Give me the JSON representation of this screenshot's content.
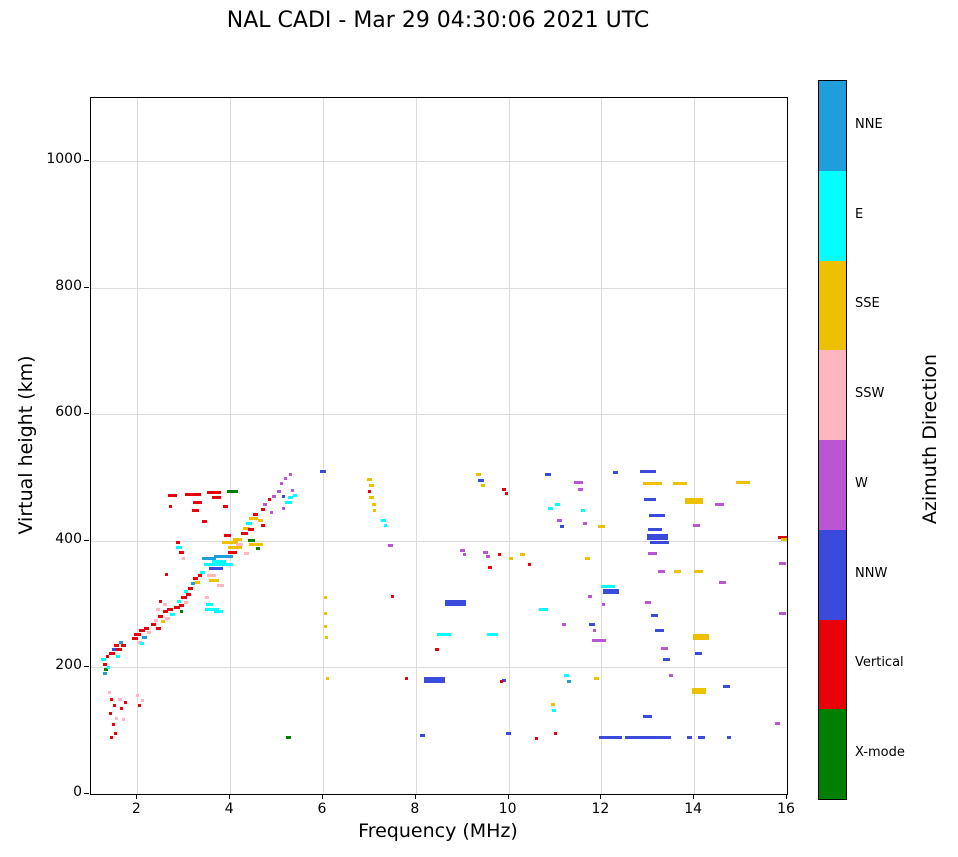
{
  "chart_data": {
    "type": "scatter",
    "title": "NAL CADI - Mar 29 04:30:06 2021 UTC",
    "xlabel": "Frequency (MHz)",
    "ylabel": "Virtual height (km)",
    "legend_title": "Azimuth Direction",
    "legend_position": "right-colorbar",
    "xlim": [
      1,
      16
    ],
    "ylim": [
      0,
      1100
    ],
    "x_ticks": [
      2,
      4,
      6,
      8,
      10,
      12,
      14,
      16
    ],
    "y_ticks": [
      0,
      200,
      400,
      600,
      800,
      1000
    ],
    "grid": true,
    "categories": [
      {
        "label": "NNE",
        "color": "#1E9EDB"
      },
      {
        "label": "E",
        "color": "#00FFFF"
      },
      {
        "label": "SSE",
        "color": "#EDC000"
      },
      {
        "label": "SSW",
        "color": "#FFB6C1"
      },
      {
        "label": "W",
        "color": "#BA55D3"
      },
      {
        "label": "NNW",
        "color": "#3A4BDC"
      },
      {
        "label": "Vertical",
        "color": "#E8000B"
      },
      {
        "label": "X-mode",
        "color": "#008000"
      }
    ],
    "points_format": [
      "freq_MHz_center",
      "height_km",
      "direction",
      "width_MHz"
    ],
    "points": [
      [
        1.27,
        212,
        "E",
        0.1
      ],
      [
        1.3,
        204,
        "Vertical",
        0.1
      ],
      [
        1.32,
        197,
        "X-mode",
        0.08
      ],
      [
        1.3,
        190,
        "NNE",
        0.08
      ],
      [
        1.38,
        200,
        "E",
        0.08
      ],
      [
        1.35,
        218,
        "Vertical",
        0.06
      ],
      [
        1.4,
        160,
        "SSW",
        0.06
      ],
      [
        1.45,
        150,
        "Vertical",
        0.05
      ],
      [
        1.5,
        140,
        "Vertical",
        0.05
      ],
      [
        1.42,
        128,
        "Vertical",
        0.05
      ],
      [
        1.55,
        120,
        "SSW",
        0.06
      ],
      [
        1.48,
        110,
        "Vertical",
        0.05
      ],
      [
        1.52,
        96,
        "Vertical",
        0.05
      ],
      [
        1.44,
        90,
        "Vertical",
        0.05
      ],
      [
        1.62,
        150,
        "SSW",
        0.08
      ],
      [
        1.65,
        135,
        "Vertical",
        0.05
      ],
      [
        1.7,
        118,
        "SSW",
        0.05
      ],
      [
        1.75,
        145,
        "Vertical",
        0.05
      ],
      [
        1.45,
        222,
        "Vertical",
        0.12
      ],
      [
        1.5,
        228,
        "NNW",
        0.1
      ],
      [
        1.55,
        235,
        "Vertical",
        0.1
      ],
      [
        1.6,
        228,
        "Vertical",
        0.12
      ],
      [
        1.65,
        240,
        "NNE",
        0.1
      ],
      [
        1.7,
        235,
        "Vertical",
        0.1
      ],
      [
        1.58,
        218,
        "E",
        0.08
      ],
      [
        1.95,
        245,
        "Vertical",
        0.12
      ],
      [
        2.0,
        252,
        "Vertical",
        0.15
      ],
      [
        2.05,
        240,
        "SSW",
        0.1
      ],
      [
        2.1,
        258,
        "Vertical",
        0.12
      ],
      [
        2.15,
        248,
        "NNE",
        0.1
      ],
      [
        2.2,
        262,
        "Vertical",
        0.1
      ],
      [
        2.1,
        238,
        "E",
        0.1
      ],
      [
        2.25,
        255,
        "SSW",
        0.1
      ],
      [
        2.0,
        155,
        "SSW",
        0.06
      ],
      [
        2.1,
        148,
        "SSW",
        0.05
      ],
      [
        2.05,
        140,
        "Vertical",
        0.05
      ],
      [
        2.35,
        268,
        "Vertical",
        0.12
      ],
      [
        2.4,
        275,
        "SSW",
        0.1
      ],
      [
        2.45,
        262,
        "Vertical",
        0.1
      ],
      [
        2.5,
        280,
        "Vertical",
        0.12
      ],
      [
        2.55,
        272,
        "SSE",
        0.1
      ],
      [
        2.6,
        288,
        "Vertical",
        0.1
      ],
      [
        2.65,
        278,
        "SSW",
        0.1
      ],
      [
        2.7,
        292,
        "Vertical",
        0.12
      ],
      [
        2.75,
        283,
        "E",
        0.1
      ],
      [
        2.6,
        300,
        "SSW",
        0.08
      ],
      [
        2.45,
        292,
        "SSW",
        0.08
      ],
      [
        2.5,
        305,
        "Vertical",
        0.06
      ],
      [
        2.62,
        347,
        "Vertical",
        0.06
      ],
      [
        2.75,
        472,
        "Vertical",
        0.2
      ],
      [
        2.72,
        455,
        "Vertical",
        0.06
      ],
      [
        2.85,
        295,
        "Vertical",
        0.12
      ],
      [
        2.9,
        305,
        "E",
        0.1
      ],
      [
        2.95,
        298,
        "Vertical",
        0.1
      ],
      [
        3.0,
        310,
        "Vertical",
        0.12
      ],
      [
        3.05,
        302,
        "SSW",
        0.1
      ],
      [
        3.1,
        315,
        "Vertical",
        0.1
      ],
      [
        2.95,
        288,
        "X-mode",
        0.08
      ],
      [
        3.05,
        320,
        "E",
        0.08
      ],
      [
        2.9,
        390,
        "E",
        0.12
      ],
      [
        2.95,
        382,
        "Vertical",
        0.1
      ],
      [
        2.88,
        398,
        "Vertical",
        0.08
      ],
      [
        3.0,
        372,
        "SSW",
        0.06
      ],
      [
        3.15,
        325,
        "Vertical",
        0.1
      ],
      [
        3.2,
        332,
        "NNE",
        0.1
      ],
      [
        3.25,
        340,
        "Vertical",
        0.1
      ],
      [
        3.3,
        335,
        "SSE",
        0.1
      ],
      [
        3.35,
        345,
        "Vertical",
        0.1
      ],
      [
        3.4,
        350,
        "E",
        0.1
      ],
      [
        3.2,
        473,
        "Vertical",
        0.35
      ],
      [
        3.3,
        460,
        "Vertical",
        0.2
      ],
      [
        3.25,
        448,
        "Vertical",
        0.15
      ],
      [
        3.45,
        430,
        "Vertical",
        0.1
      ],
      [
        3.55,
        372,
        "NNE",
        0.3
      ],
      [
        3.6,
        362,
        "E",
        0.35
      ],
      [
        3.7,
        356,
        "NNW",
        0.3
      ],
      [
        3.75,
        368,
        "E",
        0.3
      ],
      [
        3.85,
        375,
        "NNE",
        0.4
      ],
      [
        3.9,
        362,
        "E",
        0.3
      ],
      [
        3.6,
        345,
        "SSW",
        0.2
      ],
      [
        3.65,
        338,
        "SSE",
        0.2
      ],
      [
        3.8,
        330,
        "SSW",
        0.15
      ],
      [
        3.5,
        310,
        "SSW",
        0.1
      ],
      [
        3.55,
        300,
        "E",
        0.15
      ],
      [
        3.6,
        292,
        "E",
        0.3
      ],
      [
        3.75,
        288,
        "E",
        0.2
      ],
      [
        3.65,
        476,
        "Vertical",
        0.3
      ],
      [
        3.7,
        468,
        "Vertical",
        0.2
      ],
      [
        3.9,
        455,
        "Vertical",
        0.12
      ],
      [
        4.05,
        478,
        "X-mode",
        0.25
      ],
      [
        4.0,
        398,
        "SSE",
        0.35
      ],
      [
        4.1,
        390,
        "SSE",
        0.3
      ],
      [
        4.05,
        382,
        "Vertical",
        0.2
      ],
      [
        4.15,
        402,
        "SSE",
        0.2
      ],
      [
        4.2,
        395,
        "SSW",
        0.15
      ],
      [
        3.95,
        408,
        "Vertical",
        0.15
      ],
      [
        4.3,
        412,
        "Vertical",
        0.15
      ],
      [
        4.35,
        420,
        "SSE",
        0.15
      ],
      [
        4.4,
        428,
        "E",
        0.12
      ],
      [
        4.45,
        418,
        "Vertical",
        0.12
      ],
      [
        4.5,
        435,
        "SSE",
        0.2
      ],
      [
        4.55,
        442,
        "Vertical",
        0.1
      ],
      [
        4.45,
        400,
        "X-mode",
        0.15
      ],
      [
        4.55,
        395,
        "SSE",
        0.3
      ],
      [
        4.6,
        388,
        "X-mode",
        0.1
      ],
      [
        4.35,
        380,
        "SSW",
        0.1
      ],
      [
        4.65,
        432,
        "SSE",
        0.1
      ],
      [
        4.7,
        425,
        "Vertical",
        0.08
      ],
      [
        4.7,
        450,
        "Vertical",
        0.08
      ],
      [
        4.75,
        458,
        "W",
        0.08
      ],
      [
        4.85,
        465,
        "Vertical",
        0.06
      ],
      [
        4.9,
        445,
        "W",
        0.06
      ],
      [
        4.95,
        470,
        "W",
        0.08
      ],
      [
        5.05,
        478,
        "W",
        0.08
      ],
      [
        5.1,
        490,
        "W",
        0.06
      ],
      [
        5.15,
        470,
        "NNW",
        0.08
      ],
      [
        5.2,
        498,
        "W",
        0.06
      ],
      [
        5.25,
        460,
        "E",
        0.15
      ],
      [
        5.3,
        468,
        "E",
        0.12
      ],
      [
        5.35,
        480,
        "W",
        0.06
      ],
      [
        5.4,
        472,
        "E",
        0.1
      ],
      [
        5.15,
        452,
        "W",
        0.06
      ],
      [
        5.3,
        505,
        "W",
        0.05
      ],
      [
        5.25,
        90,
        "X-mode",
        0.1
      ],
      [
        6.0,
        510,
        "NNW",
        0.12
      ],
      [
        6.05,
        310,
        "SSE",
        0.05
      ],
      [
        6.05,
        285,
        "SSE",
        0.05
      ],
      [
        6.05,
        265,
        "SSE",
        0.05
      ],
      [
        6.08,
        248,
        "SSE",
        0.05
      ],
      [
        6.1,
        182,
        "SSE",
        0.06
      ],
      [
        7.0,
        497,
        "SSE",
        0.12
      ],
      [
        7.05,
        488,
        "SSE",
        0.1
      ],
      [
        7.0,
        478,
        "Vertical",
        0.08
      ],
      [
        7.05,
        468,
        "SSE",
        0.1
      ],
      [
        7.1,
        458,
        "SSE",
        0.08
      ],
      [
        7.1,
        448,
        "SSE",
        0.06
      ],
      [
        7.3,
        432,
        "E",
        0.12
      ],
      [
        7.35,
        425,
        "E",
        0.08
      ],
      [
        7.45,
        392,
        "W",
        0.1
      ],
      [
        7.5,
        312,
        "Vertical",
        0.06
      ],
      [
        7.8,
        182,
        "Vertical",
        0.08
      ],
      [
        8.15,
        92,
        "NNW",
        0.1
      ],
      [
        8.4,
        178,
        "NNW",
        0.45
      ],
      [
        8.4,
        182,
        "NNW",
        0.45
      ],
      [
        8.45,
        228,
        "Vertical",
        0.08
      ],
      [
        8.6,
        252,
        "E",
        0.3
      ],
      [
        8.85,
        300,
        "NNW",
        0.45
      ],
      [
        8.85,
        304,
        "NNW",
        0.45
      ],
      [
        9.0,
        385,
        "W",
        0.1
      ],
      [
        9.05,
        378,
        "W",
        0.08
      ],
      [
        9.35,
        505,
        "SSE",
        0.1
      ],
      [
        9.4,
        495,
        "NNW",
        0.12
      ],
      [
        9.45,
        488,
        "SSE",
        0.08
      ],
      [
        9.5,
        382,
        "W",
        0.1
      ],
      [
        9.55,
        375,
        "W",
        0.08
      ],
      [
        9.6,
        358,
        "Vertical",
        0.08
      ],
      [
        9.65,
        252,
        "E",
        0.25
      ],
      [
        9.9,
        482,
        "Vertical",
        0.1
      ],
      [
        9.95,
        475,
        "Vertical",
        0.06
      ],
      [
        10.0,
        95,
        "NNW",
        0.12
      ],
      [
        9.8,
        378,
        "Vertical",
        0.06
      ],
      [
        10.05,
        372,
        "SSE",
        0.1
      ],
      [
        9.9,
        180,
        "NNW",
        0.1
      ],
      [
        9.85,
        178,
        "Vertical",
        0.06
      ],
      [
        10.3,
        378,
        "SSE",
        0.12
      ],
      [
        10.45,
        362,
        "Vertical",
        0.08
      ],
      [
        10.6,
        88,
        "Vertical",
        0.06
      ],
      [
        10.75,
        292,
        "E",
        0.2
      ],
      [
        10.85,
        505,
        "NNW",
        0.12
      ],
      [
        10.9,
        452,
        "E",
        0.1
      ],
      [
        10.95,
        142,
        "SSE",
        0.08
      ],
      [
        10.98,
        132,
        "E",
        0.08
      ],
      [
        11.0,
        95,
        "Vertical",
        0.06
      ],
      [
        11.05,
        458,
        "E",
        0.1
      ],
      [
        11.1,
        432,
        "W",
        0.1
      ],
      [
        11.15,
        422,
        "NNW",
        0.1
      ],
      [
        11.2,
        268,
        "W",
        0.08
      ],
      [
        11.25,
        188,
        "E",
        0.1
      ],
      [
        11.3,
        178,
        "NNE",
        0.08
      ],
      [
        11.5,
        492,
        "W",
        0.2
      ],
      [
        11.55,
        482,
        "W",
        0.1
      ],
      [
        11.6,
        448,
        "E",
        0.1
      ],
      [
        11.65,
        428,
        "W",
        0.08
      ],
      [
        11.7,
        372,
        "SSE",
        0.1
      ],
      [
        11.75,
        312,
        "W",
        0.08
      ],
      [
        11.8,
        268,
        "NNW",
        0.12
      ],
      [
        11.85,
        258,
        "W",
        0.08
      ],
      [
        11.9,
        182,
        "SSE",
        0.1
      ],
      [
        11.95,
        242,
        "W",
        0.3
      ],
      [
        12.0,
        422,
        "SSE",
        0.15
      ],
      [
        12.05,
        300,
        "W",
        0.06
      ],
      [
        12.15,
        328,
        "E",
        0.3
      ],
      [
        12.2,
        322,
        "NNW",
        0.35
      ],
      [
        12.2,
        318,
        "NNW",
        0.35
      ],
      [
        12.3,
        508,
        "NNW",
        0.1
      ],
      [
        12.2,
        90,
        "NNW",
        0.5
      ],
      [
        12.8,
        90,
        "NNW",
        0.6
      ],
      [
        13.3,
        90,
        "NNW",
        0.4
      ],
      [
        13.0,
        510,
        "NNW",
        0.35
      ],
      [
        13.1,
        490,
        "SSE",
        0.4
      ],
      [
        13.05,
        465,
        "NNW",
        0.25
      ],
      [
        13.2,
        440,
        "NNW",
        0.35
      ],
      [
        13.15,
        418,
        "NNW",
        0.3
      ],
      [
        13.2,
        408,
        "NNW",
        0.45
      ],
      [
        13.2,
        404,
        "NNW",
        0.45
      ],
      [
        13.25,
        398,
        "NNW",
        0.4
      ],
      [
        13.1,
        380,
        "W",
        0.2
      ],
      [
        13.3,
        352,
        "W",
        0.15
      ],
      [
        13.0,
        302,
        "W",
        0.12
      ],
      [
        13.15,
        282,
        "NNW",
        0.15
      ],
      [
        13.25,
        258,
        "NNW",
        0.2
      ],
      [
        13.35,
        230,
        "W",
        0.15
      ],
      [
        13.4,
        212,
        "NNW",
        0.15
      ],
      [
        13.5,
        188,
        "W",
        0.1
      ],
      [
        13.0,
        122,
        "NNW",
        0.2
      ],
      [
        13.7,
        490,
        "SSE",
        0.3
      ],
      [
        13.65,
        352,
        "SSE",
        0.15
      ],
      [
        14.0,
        465,
        "SSE",
        0.4
      ],
      [
        14.0,
        461,
        "SSE",
        0.4
      ],
      [
        14.05,
        425,
        "W",
        0.15
      ],
      [
        14.1,
        352,
        "SSE",
        0.2
      ],
      [
        14.15,
        250,
        "SSE",
        0.35
      ],
      [
        14.15,
        246,
        "SSE",
        0.35
      ],
      [
        14.1,
        222,
        "NNW",
        0.15
      ],
      [
        14.1,
        165,
        "SSE",
        0.3
      ],
      [
        14.1,
        161,
        "SSE",
        0.3
      ],
      [
        14.15,
        90,
        "NNW",
        0.15
      ],
      [
        13.9,
        90,
        "NNW",
        0.1
      ],
      [
        14.55,
        458,
        "W",
        0.2
      ],
      [
        14.6,
        335,
        "W",
        0.15
      ],
      [
        14.7,
        170,
        "NNW",
        0.15
      ],
      [
        14.75,
        90,
        "NNW",
        0.1
      ],
      [
        15.05,
        492,
        "SSE",
        0.3
      ],
      [
        15.9,
        405,
        "Vertical",
        0.2
      ],
      [
        15.95,
        402,
        "SSE",
        0.15
      ],
      [
        15.9,
        365,
        "W",
        0.15
      ],
      [
        15.9,
        285,
        "W",
        0.15
      ],
      [
        15.8,
        112,
        "W",
        0.12
      ]
    ]
  }
}
